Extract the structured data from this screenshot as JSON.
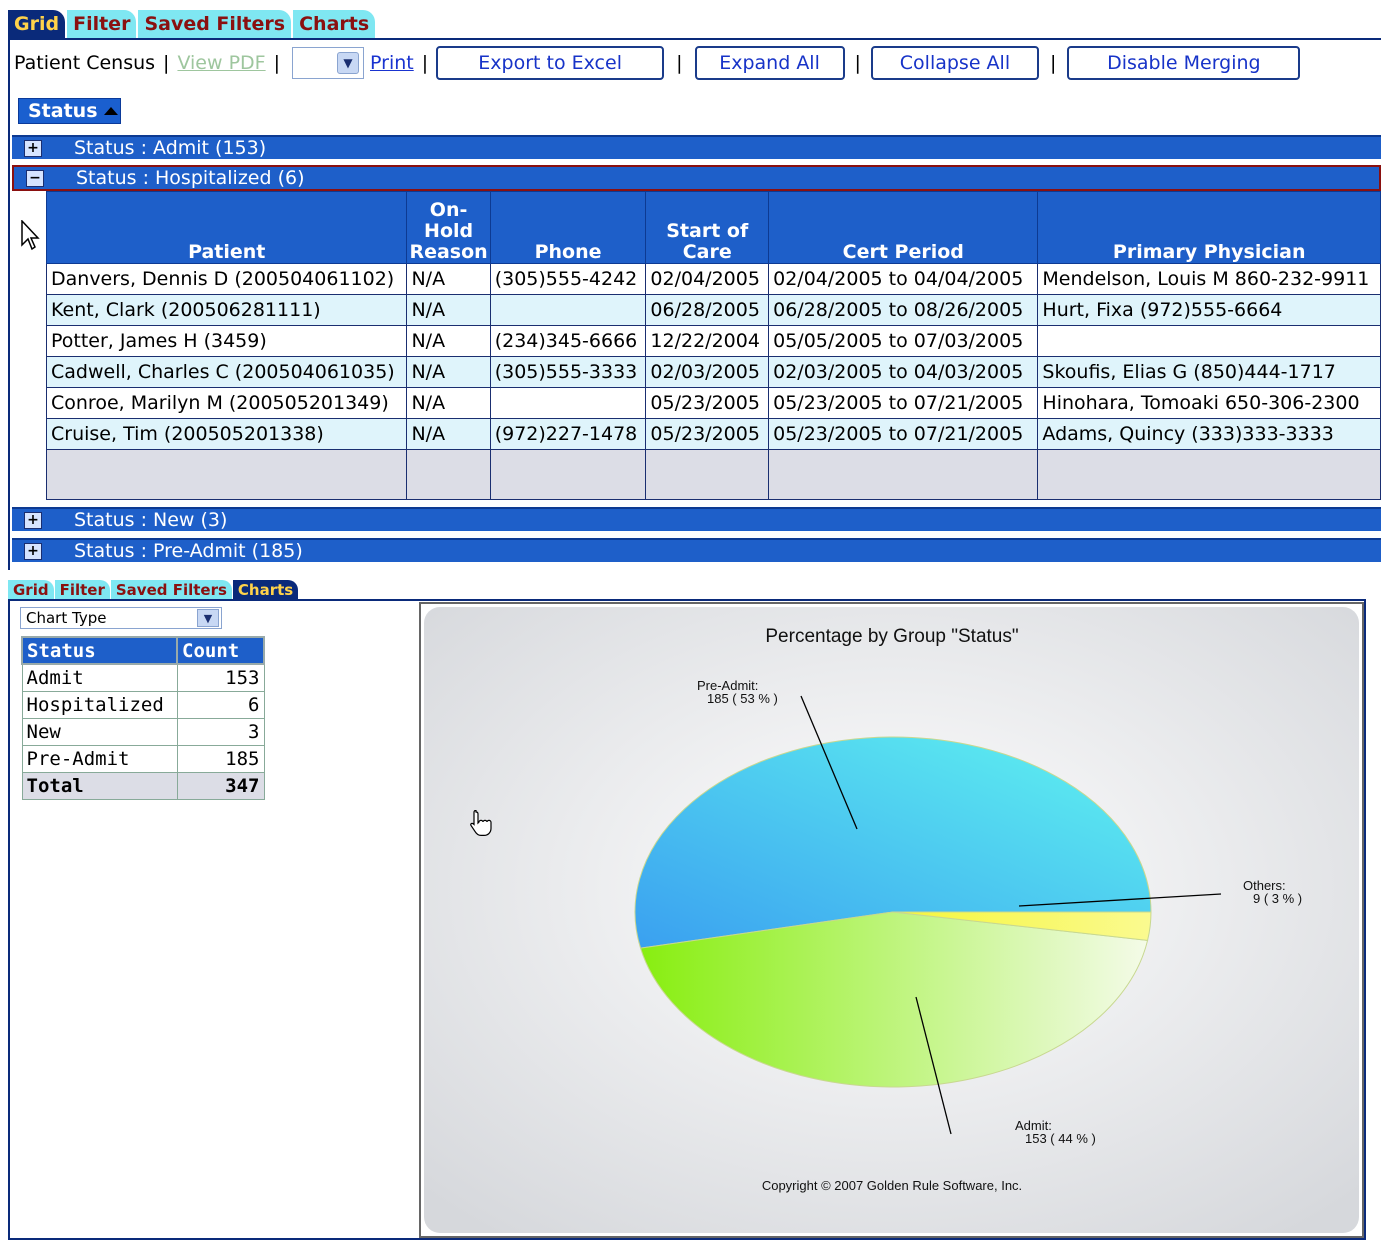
{
  "tabs_top": [
    {
      "label": "Grid",
      "active": true
    },
    {
      "label": "Filter",
      "active": false
    },
    {
      "label": "Saved Filters",
      "active": false
    },
    {
      "label": "Charts",
      "active": false
    }
  ],
  "toolbar": {
    "title": "Patient Census",
    "view_pdf": "View PDF",
    "print": "Print",
    "export": "Export to Excel",
    "expand": "Expand All",
    "collapse": "Collapse All",
    "disable_merging": "Disable Merging",
    "separator": "|"
  },
  "sort_chip": "Status",
  "groups": [
    {
      "label": "Status : Admit (153)",
      "toggle": "+"
    },
    {
      "label": "Status : Hospitalized (6)",
      "toggle": "−"
    },
    {
      "label": "Status : New (3)",
      "toggle": "+"
    },
    {
      "label": "Status : Pre-Admit (185)",
      "toggle": "+"
    }
  ],
  "grid": {
    "headers": [
      "Patient",
      "On-\nHold\nReason",
      "Phone",
      "Start of\nCare",
      "Cert Period",
      "Primary Physician"
    ],
    "rows": [
      [
        "Danvers, Dennis D (200504061102)",
        "N/A",
        "(305)555-4242",
        "02/04/2005",
        "02/04/2005 to 04/04/2005",
        "Mendelson, Louis M 860-232-9911"
      ],
      [
        "Kent, Clark (200506281111)",
        "N/A",
        "",
        "06/28/2005",
        "06/28/2005 to 08/26/2005",
        "Hurt, Fixa (972)555-6664"
      ],
      [
        "Potter, James H (3459)",
        "N/A",
        "(234)345-6666",
        "12/22/2004",
        "05/05/2005 to 07/03/2005",
        ""
      ],
      [
        "Cadwell, Charles C (200504061035)",
        "N/A",
        "(305)555-3333",
        "02/03/2005",
        "02/03/2005 to 04/03/2005",
        "Skoufis, Elias G (850)444-1717"
      ],
      [
        "Conroe, Marilyn M (200505201349)",
        "N/A",
        "",
        "05/23/2005",
        "05/23/2005 to 07/21/2005",
        "Hinohara, Tomoaki 650-306-2300"
      ],
      [
        "Cruise, Tim (200505201338)",
        "N/A",
        "(972)227-1478",
        "05/23/2005",
        "05/23/2005 to 07/21/2005",
        "Adams, Quincy (333)333-3333"
      ]
    ]
  },
  "tabs_bottom": [
    {
      "label": "Grid",
      "active": false
    },
    {
      "label": "Filter",
      "active": false
    },
    {
      "label": "Saved Filters",
      "active": false
    },
    {
      "label": "Charts",
      "active": true
    }
  ],
  "chart_type_select": "Chart Type",
  "summary": {
    "headers": [
      "Status",
      "Count"
    ],
    "rows": [
      [
        "Admit",
        "153"
      ],
      [
        "Hospitalized",
        "6"
      ],
      [
        "New",
        "3"
      ],
      [
        "Pre-Admit",
        "185"
      ]
    ],
    "total_label": "Total",
    "total_value": "347"
  },
  "colors": {
    "header_blue": "#1e5fc9",
    "dark_navy": "#0a2a7a",
    "tab_cyan": "#7fe7f2",
    "tab_text": "#8a1010",
    "active_tab_text": "#ffd24a"
  },
  "chart_data": {
    "type": "pie",
    "title": "Percentage by Group \"Status\"",
    "categories": [
      "Pre-Admit",
      "Admit",
      "Others"
    ],
    "values": [
      185,
      153,
      9
    ],
    "labels": [
      {
        "name": "Pre-Admit:",
        "detail": "185 ( 53 % )"
      },
      {
        "name": "Admit:",
        "detail": "153 ( 44 % )"
      },
      {
        "name": "Others:",
        "detail": "9 ( 3 % )"
      }
    ],
    "colors": [
      "#4fd0f0",
      "#9cf03a",
      "#f0f050"
    ],
    "footer": "Copyright © 2007 Golden Rule Software, Inc."
  }
}
